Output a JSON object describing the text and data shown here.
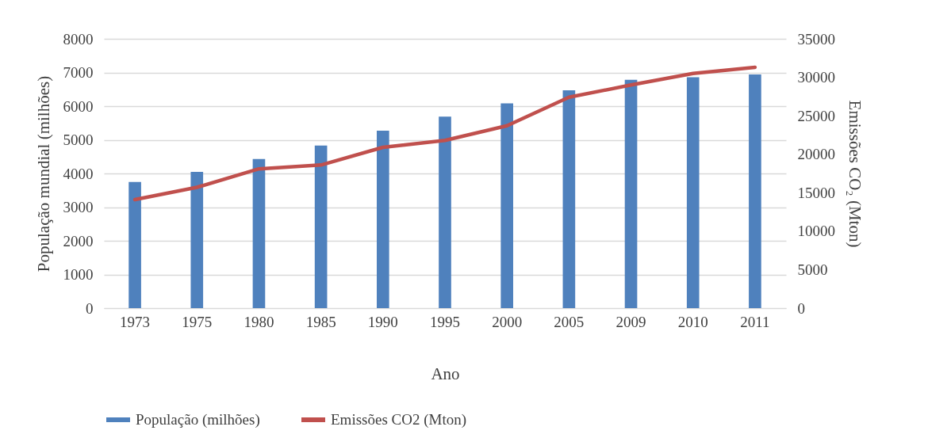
{
  "chart_data": {
    "type": "bar",
    "xlabel": "Ano",
    "ylabel": "População mundial (milhões)",
    "y2label": "Emissões CO₂ (Mton)",
    "categories": [
      "1973",
      "1975",
      "1980",
      "1985",
      "1990",
      "1995",
      "2000",
      "2005",
      "2009",
      "2010",
      "2011"
    ],
    "series": [
      {
        "name": "População (milhões)",
        "color": "#4f81bd",
        "values": [
          3750,
          4050,
          4430,
          4830,
          5270,
          5690,
          6080,
          6470,
          6780,
          6860,
          6940
        ]
      },
      {
        "name": "Emissões CO2 (Mton)",
        "type": "line",
        "axis": "y2",
        "color": "#c0504d",
        "values": [
          14100,
          15700,
          18100,
          18600,
          20900,
          21800,
          23700,
          27400,
          29000,
          30500,
          31300
        ]
      }
    ],
    "ylim": [
      0,
      8000
    ],
    "yticks": [
      0,
      1000,
      2000,
      3000,
      4000,
      5000,
      6000,
      7000,
      8000
    ],
    "y2lim": [
      0,
      35000
    ],
    "y2ticks": [
      0,
      5000,
      10000,
      15000,
      20000,
      25000,
      30000,
      35000
    ],
    "grid": "y",
    "legend": "bottom"
  }
}
